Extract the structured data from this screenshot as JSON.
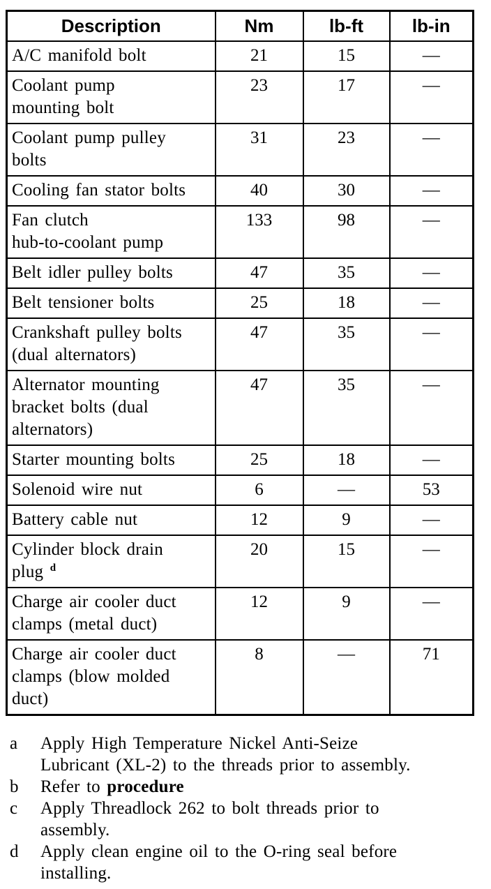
{
  "palette": {
    "text": "#000000",
    "background": "#ffffff",
    "border": "#000000"
  },
  "table": {
    "headers": [
      "Description",
      "Nm",
      "lb-ft",
      "lb-in"
    ],
    "rows": [
      {
        "desc_lines": [
          [
            {
              "t": "A/C manifold bolt"
            }
          ]
        ],
        "nm": "21",
        "lb_ft": "15",
        "lb_in": "—"
      },
      {
        "desc_lines": [
          [
            {
              "t": "Coolant pump"
            }
          ],
          [
            {
              "t": "mounting bolt"
            }
          ]
        ],
        "nm": "23",
        "lb_ft": "17",
        "lb_in": "—"
      },
      {
        "desc_lines": [
          [
            {
              "t": "Coolant pump pulley"
            }
          ],
          [
            {
              "t": "bolts"
            }
          ]
        ],
        "nm": "31",
        "lb_ft": "23",
        "lb_in": "—"
      },
      {
        "desc_lines": [
          [
            {
              "t": "Cooling fan stator bolts"
            }
          ]
        ],
        "nm": "40",
        "lb_ft": "30",
        "lb_in": "—"
      },
      {
        "desc_lines": [
          [
            {
              "t": "Fan clutch"
            }
          ],
          [
            {
              "t": "hub-to-coolant pump"
            }
          ]
        ],
        "nm": "133",
        "lb_ft": "98",
        "lb_in": "—"
      },
      {
        "desc_lines": [
          [
            {
              "t": "Belt idler pulley bolts"
            }
          ]
        ],
        "nm": "47",
        "lb_ft": "35",
        "lb_in": "—"
      },
      {
        "desc_lines": [
          [
            {
              "t": "Belt tensioner bolts"
            }
          ]
        ],
        "nm": "25",
        "lb_ft": "18",
        "lb_in": "—"
      },
      {
        "desc_lines": [
          [
            {
              "t": "Crankshaft pulley bolts"
            }
          ],
          [
            {
              "t": "(dual alternators)"
            }
          ]
        ],
        "nm": "47",
        "lb_ft": "35",
        "lb_in": "—"
      },
      {
        "desc_lines": [
          [
            {
              "t": "Alternator mounting"
            }
          ],
          [
            {
              "t": "bracket bolts (dual"
            }
          ],
          [
            {
              "t": "alternators)"
            }
          ]
        ],
        "nm": "47",
        "lb_ft": "35",
        "lb_in": "—"
      },
      {
        "desc_lines": [
          [
            {
              "t": "Starter mounting bolts"
            }
          ]
        ],
        "nm": "25",
        "lb_ft": "18",
        "lb_in": "—"
      },
      {
        "desc_lines": [
          [
            {
              "t": "Solenoid wire nut"
            }
          ]
        ],
        "nm": "6",
        "lb_ft": "—",
        "lb_in": "53"
      },
      {
        "desc_lines": [
          [
            {
              "t": "Battery cable nut"
            }
          ]
        ],
        "nm": "12",
        "lb_ft": "9",
        "lb_in": "—"
      },
      {
        "desc_lines": [
          [
            {
              "t": "Cylinder block drain"
            }
          ],
          [
            {
              "t": "plug "
            },
            {
              "t": "d",
              "sup": true
            }
          ]
        ],
        "nm": "20",
        "lb_ft": "15",
        "lb_in": "—"
      },
      {
        "desc_lines": [
          [
            {
              "t": "Charge air cooler duct"
            }
          ],
          [
            {
              "t": "clamps (metal duct)"
            }
          ]
        ],
        "nm": "12",
        "lb_ft": "9",
        "lb_in": "—"
      },
      {
        "desc_lines": [
          [
            {
              "t": "Charge air cooler duct"
            }
          ],
          [
            {
              "t": "clamps (blow molded"
            }
          ],
          [
            {
              "t": "duct)"
            }
          ]
        ],
        "nm": "8",
        "lb_ft": "—",
        "lb_in": "71"
      }
    ]
  },
  "footnotes": [
    {
      "letter": "a",
      "lines": [
        [
          {
            "t": "Apply High Temperature Nickel Anti-Seize"
          }
        ],
        [
          {
            "t": "Lubricant (XL-2) to the threads prior to assembly."
          }
        ]
      ]
    },
    {
      "letter": "b",
      "lines": [
        [
          {
            "t": "Refer to "
          },
          {
            "t": "procedure",
            "b": true
          }
        ]
      ]
    },
    {
      "letter": "c",
      "lines": [
        [
          {
            "t": "Apply Threadlock 262 to bolt threads prior to"
          }
        ],
        [
          {
            "t": "assembly."
          }
        ]
      ]
    },
    {
      "letter": "d",
      "lines": [
        [
          {
            "t": "Apply clean engine oil to the O-ring seal before"
          }
        ],
        [
          {
            "t": "installing."
          }
        ]
      ]
    }
  ]
}
